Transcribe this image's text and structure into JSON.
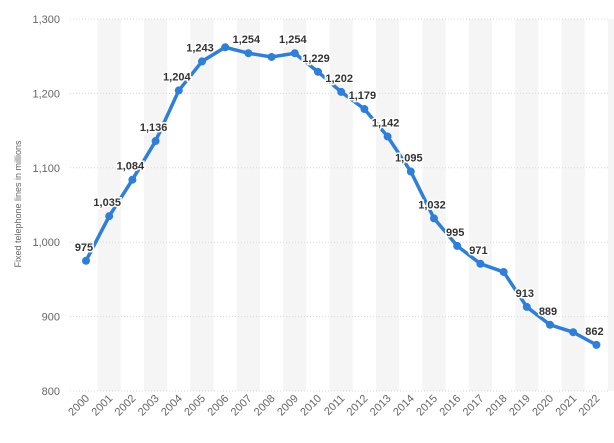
{
  "chart_data": {
    "type": "line",
    "xlabel": "",
    "ylabel": "Fixed telephone lines in millions",
    "x": [
      "2000",
      "2001",
      "2002",
      "2003",
      "2004",
      "2005",
      "2006",
      "2007",
      "2008",
      "2009",
      "2010",
      "2011",
      "2012",
      "2013",
      "2014",
      "2015",
      "2016",
      "2017",
      "2018",
      "2019",
      "2020",
      "2021",
      "2022"
    ],
    "series": [
      {
        "values": [
          975,
          1035,
          1084,
          1136,
          1204,
          1243,
          1262,
          1254,
          1249,
          1254,
          1229,
          1202,
          1179,
          1142,
          1095,
          1032,
          995,
          971,
          960,
          913,
          889,
          879,
          862
        ],
        "data_labels": [
          "975",
          "1,035",
          "1,084",
          "1,136",
          "1,204",
          "1,243",
          "",
          "1,254",
          "",
          "1,254",
          "1,229",
          "1,202",
          "1,179",
          "1,142",
          "1,095",
          "1,032",
          "995",
          "971",
          "",
          "913",
          "889",
          "",
          "862"
        ]
      }
    ],
    "ylim": [
      800,
      1300
    ],
    "yticks": [
      800,
      900,
      1000,
      1100,
      1200,
      1300
    ],
    "ytick_labels": [
      "800",
      "900",
      "1,000",
      "1,100",
      "1,200",
      "1,300"
    ],
    "grid": true,
    "line_color": "#2f7ed8",
    "band_color": "#f5f5f5"
  }
}
